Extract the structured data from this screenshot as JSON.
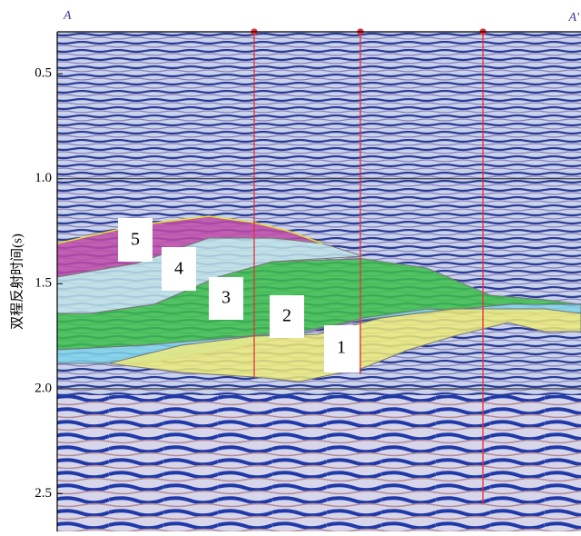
{
  "figure": {
    "left_label": "A",
    "right_label": "A'",
    "y_axis_label": "双程反射时间(s)",
    "ylim": [
      0.3,
      2.68
    ],
    "yticks": [
      0.5,
      {
        "value": 1,
        "label": "1.0"
      },
      1.5,
      {
        "value": 2,
        "label": "2.0"
      },
      2.5
    ],
    "zones": [
      {
        "label": "5"
      },
      {
        "label": "4"
      },
      {
        "label": "3"
      },
      {
        "label": "2"
      },
      {
        "label": "1"
      }
    ]
  }
}
